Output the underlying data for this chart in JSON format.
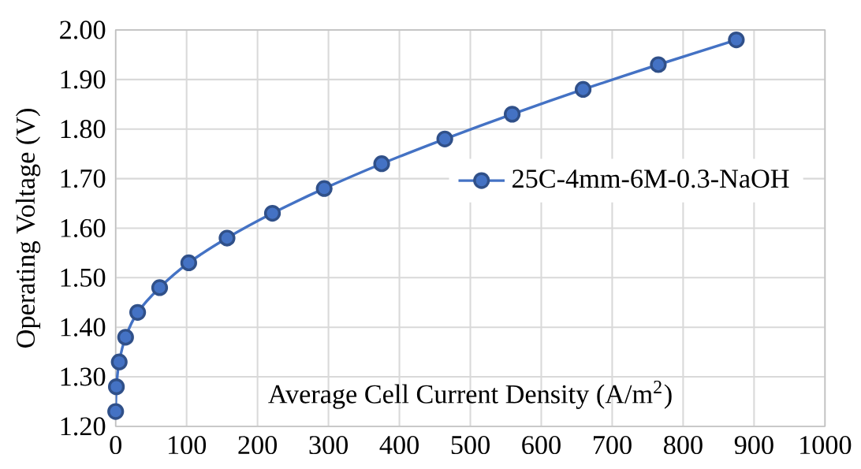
{
  "chart_data": {
    "type": "line",
    "xlabel": "Average Cell Current Density  (A/m$^{2}$)",
    "ylabel": "Operating Voltage (V)",
    "series": [
      {
        "name": "25C-4mm-6M-0.3-NaOH",
        "color": "#4472c4",
        "x": [
          0,
          1,
          5,
          14,
          31,
          62,
          103,
          157,
          221,
          294,
          375,
          464,
          559,
          659,
          765,
          875
        ],
        "values": [
          1.23,
          1.28,
          1.33,
          1.38,
          1.43,
          1.48,
          1.53,
          1.58,
          1.63,
          1.68,
          1.73,
          1.78,
          1.83,
          1.88,
          1.93,
          1.98
        ]
      }
    ],
    "xlim": [
      0,
      1000
    ],
    "xticks": [
      0,
      100,
      200,
      300,
      400,
      500,
      600,
      700,
      800,
      900,
      1000
    ],
    "ylim": [
      1.2,
      2.0
    ],
    "yticks": [
      {
        "value": 1.2,
        "label": "1.20"
      },
      {
        "value": 1.3,
        "label": "1.30"
      },
      {
        "value": 1.4,
        "label": "1.40"
      },
      {
        "value": 1.5,
        "label": "1.50"
      },
      {
        "value": 1.6,
        "label": "1.60"
      },
      {
        "value": 1.7,
        "label": "1.70"
      },
      {
        "value": 1.8,
        "label": "1.80"
      },
      {
        "value": 1.9,
        "label": "1.90"
      },
      {
        "value": 2.0,
        "label": "2.00"
      }
    ],
    "grid": true,
    "legend": "right",
    "marker": "circle",
    "line_style": "solid"
  }
}
